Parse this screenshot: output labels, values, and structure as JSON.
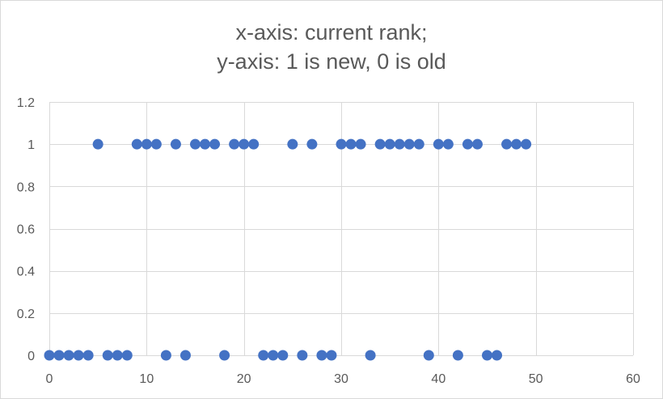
{
  "chart_data": {
    "type": "scatter",
    "title_lines": [
      "x-axis: current rank;",
      "y-axis: 1 is new, 0 is old"
    ],
    "xlabel": "",
    "ylabel": "",
    "xlim": [
      0,
      60
    ],
    "ylim": [
      0,
      1.2
    ],
    "x_ticks": [
      0,
      10,
      20,
      30,
      40,
      50,
      60
    ],
    "y_ticks": [
      0,
      0.2,
      0.4,
      0.6,
      0.8,
      1,
      1.2
    ],
    "y_tick_labels": [
      "0",
      "0.2",
      "0.4",
      "0.6",
      "0.8",
      "1",
      "1.2"
    ],
    "grid": true,
    "legend": "none",
    "marker_color": "#4472c4",
    "points": [
      {
        "x": 0,
        "y": 0
      },
      {
        "x": 1,
        "y": 0
      },
      {
        "x": 2,
        "y": 0
      },
      {
        "x": 3,
        "y": 0
      },
      {
        "x": 4,
        "y": 0
      },
      {
        "x": 5,
        "y": 1
      },
      {
        "x": 6,
        "y": 0
      },
      {
        "x": 7,
        "y": 0
      },
      {
        "x": 8,
        "y": 0
      },
      {
        "x": 9,
        "y": 1
      },
      {
        "x": 10,
        "y": 1
      },
      {
        "x": 11,
        "y": 1
      },
      {
        "x": 12,
        "y": 0
      },
      {
        "x": 13,
        "y": 1
      },
      {
        "x": 14,
        "y": 0
      },
      {
        "x": 15,
        "y": 1
      },
      {
        "x": 16,
        "y": 1
      },
      {
        "x": 17,
        "y": 1
      },
      {
        "x": 18,
        "y": 0
      },
      {
        "x": 19,
        "y": 1
      },
      {
        "x": 20,
        "y": 1
      },
      {
        "x": 21,
        "y": 1
      },
      {
        "x": 22,
        "y": 0
      },
      {
        "x": 23,
        "y": 0
      },
      {
        "x": 24,
        "y": 0
      },
      {
        "x": 25,
        "y": 1
      },
      {
        "x": 26,
        "y": 0
      },
      {
        "x": 27,
        "y": 1
      },
      {
        "x": 28,
        "y": 0
      },
      {
        "x": 29,
        "y": 0
      },
      {
        "x": 30,
        "y": 1
      },
      {
        "x": 31,
        "y": 1
      },
      {
        "x": 32,
        "y": 1
      },
      {
        "x": 33,
        "y": 0
      },
      {
        "x": 34,
        "y": 1
      },
      {
        "x": 35,
        "y": 1
      },
      {
        "x": 36,
        "y": 1
      },
      {
        "x": 37,
        "y": 1
      },
      {
        "x": 38,
        "y": 1
      },
      {
        "x": 39,
        "y": 0
      },
      {
        "x": 40,
        "y": 1
      },
      {
        "x": 41,
        "y": 1
      },
      {
        "x": 42,
        "y": 0
      },
      {
        "x": 43,
        "y": 1
      },
      {
        "x": 44,
        "y": 1
      },
      {
        "x": 45,
        "y": 0
      },
      {
        "x": 46,
        "y": 0
      },
      {
        "x": 47,
        "y": 1
      },
      {
        "x": 48,
        "y": 1
      },
      {
        "x": 49,
        "y": 1
      }
    ]
  }
}
